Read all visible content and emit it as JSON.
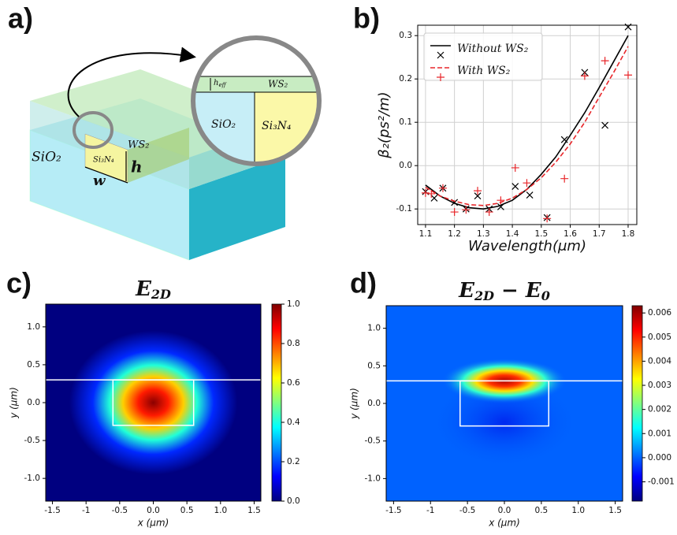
{
  "diagram": {
    "panel_label": "a)",
    "labels": {
      "sio2": "SiO₂",
      "ws2": "WS₂",
      "si3n4": "Si₃N₄",
      "h": "h",
      "w": "w"
    },
    "zoom_labels": {
      "heff": "h",
      "heff_sub": "eff",
      "ws2": "WS₂",
      "sio2": "SiO₂",
      "si3n4": "Si₃N₄"
    }
  },
  "chart_data": [
    {
      "type": "line",
      "panel_label": "b)",
      "xlabel": "Wavelength(μm)",
      "ylabel": "β₂(ps²/m)",
      "xlim": [
        1.073,
        1.83
      ],
      "ylim": [
        -0.136,
        0.324
      ],
      "xticks": [
        1.1,
        1.2,
        1.3,
        1.4,
        1.5,
        1.6,
        1.7,
        1.8
      ],
      "yticks": [
        -0.1,
        {
          "value": 0,
          "label": "0.0"
        },
        0.1,
        0.2,
        0.3
      ],
      "grid": true,
      "legend": "upper left",
      "series": [
        {
          "name": "Without WS₂",
          "color": "#000000",
          "dash": false,
          "marker": "x",
          "x": [
            1.1,
            1.15,
            1.2,
            1.25,
            1.3,
            1.35,
            1.4,
            1.45,
            1.5,
            1.55,
            1.6,
            1.65,
            1.7,
            1.75,
            1.8
          ],
          "values": [
            -0.045,
            -0.07,
            -0.087,
            -0.097,
            -0.1,
            -0.094,
            -0.08,
            -0.055,
            -0.02,
            0.02,
            0.07,
            0.122,
            0.18,
            0.24,
            0.3
          ],
          "marker_x": [
            1.1,
            1.13,
            1.16,
            1.2,
            1.24,
            1.28,
            1.32,
            1.36,
            1.41,
            1.46,
            1.52,
            1.58,
            1.65,
            1.72,
            1.8
          ],
          "marker_values": [
            -0.06,
            -0.075,
            -0.052,
            -0.085,
            -0.1,
            -0.07,
            -0.1,
            -0.095,
            -0.048,
            -0.068,
            -0.12,
            0.06,
            0.215,
            0.093,
            0.32
          ]
        },
        {
          "name": "With WS₂",
          "color": "#e8262a",
          "dash": true,
          "marker": "+",
          "x": [
            1.1,
            1.15,
            1.2,
            1.25,
            1.3,
            1.35,
            1.4,
            1.45,
            1.5,
            1.55,
            1.6,
            1.65,
            1.7,
            1.75,
            1.8
          ],
          "values": [
            -0.05,
            -0.07,
            -0.082,
            -0.09,
            -0.092,
            -0.087,
            -0.075,
            -0.055,
            -0.028,
            0.008,
            0.05,
            0.1,
            0.158,
            0.215,
            0.275
          ],
          "marker_x": [
            1.1,
            1.12,
            1.16,
            1.2,
            1.24,
            1.28,
            1.32,
            1.36,
            1.41,
            1.45,
            1.52,
            1.58,
            1.65,
            1.72,
            1.8
          ],
          "marker_values": [
            -0.063,
            -0.065,
            -0.052,
            -0.107,
            -0.102,
            -0.058,
            -0.107,
            -0.08,
            -0.005,
            -0.04,
            -0.122,
            -0.03,
            0.207,
            0.242,
            0.209
          ]
        }
      ]
    },
    {
      "type": "heatmap",
      "panel_label": "c)",
      "title_parts": [
        "E",
        "2D"
      ],
      "xlabel": "x (μm)",
      "ylabel": "y (μm)",
      "xlim": [
        -1.6,
        1.6
      ],
      "ylim": [
        -1.3,
        1.3
      ],
      "xticks": [
        -1.5,
        -1,
        -0.5,
        {
          "value": 0,
          "label": "0.0"
        },
        0.5,
        {
          "value": 1,
          "label": "1.0"
        },
        1.5
      ],
      "yticks": [
        {
          "value": -1,
          "label": "-1.0"
        },
        -0.5,
        {
          "value": 0,
          "label": "0.0"
        },
        0.5,
        {
          "value": 1,
          "label": "1.0"
        }
      ],
      "colormap": "jet",
      "clim": [
        0,
        1
      ],
      "cticks": [
        {
          "value": 0,
          "label": "0.0"
        },
        0.2,
        0.4,
        0.6,
        0.8,
        {
          "value": 1,
          "label": "1.0"
        }
      ]
    },
    {
      "type": "heatmap",
      "panel_label": "d)",
      "title_parts": [
        "E",
        "2D",
        " − E",
        "0"
      ],
      "xlabel": "x (μm)",
      "ylabel": "y (μm)",
      "xlim": [
        -1.6,
        1.6
      ],
      "ylim": [
        -1.3,
        1.3
      ],
      "xticks": [
        -1.5,
        -1,
        -0.5,
        {
          "value": 0,
          "label": "0.0"
        },
        0.5,
        {
          "value": 1,
          "label": "1.0"
        },
        1.5
      ],
      "yticks": [
        {
          "value": -1,
          "label": "-1.0"
        },
        -0.5,
        {
          "value": 0,
          "label": "0.0"
        },
        0.5,
        {
          "value": 1,
          "label": "1.0"
        }
      ],
      "colormap": "jet",
      "clim": [
        -0.0018,
        0.0063
      ],
      "cticks": [
        -0.001,
        {
          "value": 0,
          "label": "0.000"
        },
        0.001,
        0.002,
        0.003,
        0.004,
        0.005,
        0.006
      ]
    }
  ]
}
